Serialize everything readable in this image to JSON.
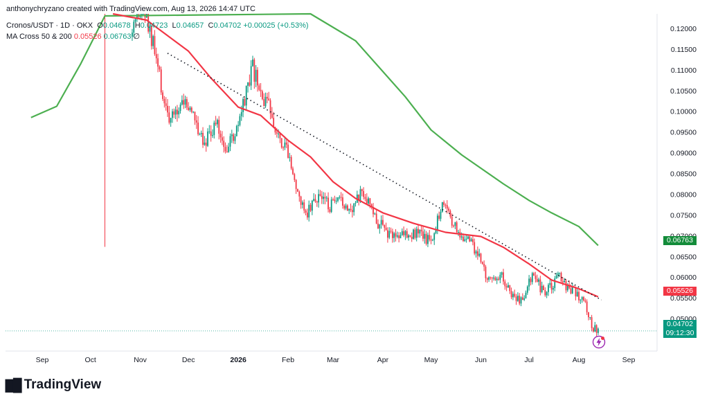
{
  "header": {
    "credit": "anthonychryzano created with TradingView.com, Aug 13, 2026 14:47 UTC",
    "symbol": "Cronos/USDT · 1D · OKX",
    "o_label": "O",
    "o": "0.04678",
    "h_label": "H",
    "h": "0.04723",
    "l_label": "L",
    "l": "0.04657",
    "c_label": "C",
    "c": "0.04702",
    "change": "+0.00025 (+0.53%)",
    "ma_label": "MA Cross 50 & 200",
    "ma50": "0.05526",
    "ma200": "0.06763",
    "ma_extra": "∅"
  },
  "price_labels": {
    "ma200": "0.06763",
    "ma50": "0.05526",
    "last": "0.04702",
    "countdown": "09:12:30"
  },
  "colors": {
    "up": "#089981",
    "down": "#f23645",
    "ma50": "#f23645",
    "ma200": "#4caf50",
    "trendline": "#131722",
    "last_bg": "#089981",
    "ma50_bg": "#f23645",
    "ma200_bg": "#138c3a"
  },
  "logo": {
    "text": "TradingView",
    "icon": "tradingview-logo-icon"
  },
  "chart_data": {
    "type": "candlestick",
    "symbol": "Cronos/USDT",
    "timeframe": "1D",
    "exchange": "OKX",
    "ylim": [
      0.0425,
      0.1235
    ],
    "y_ticks": [
      "0.12000",
      "0.11500",
      "0.11000",
      "0.10500",
      "0.10000",
      "0.09500",
      "0.09000",
      "0.08500",
      "0.08000",
      "0.07500",
      "0.07000",
      "0.06500",
      "0.06000",
      "0.05500",
      "0.05000"
    ],
    "x_ticks": [
      {
        "label": "Sep",
        "date": "2025-09-01"
      },
      {
        "label": "Oct",
        "date": "2025-10-01"
      },
      {
        "label": "Nov",
        "date": "2025-11-01"
      },
      {
        "label": "Dec",
        "date": "2025-12-01"
      },
      {
        "label": "2026",
        "date": "2026-01-01",
        "bold": true
      },
      {
        "label": "Feb",
        "date": "2026-02-01"
      },
      {
        "label": "Mar",
        "date": "2026-03-01"
      },
      {
        "label": "Apr",
        "date": "2026-04-01"
      },
      {
        "label": "May",
        "date": "2026-05-01"
      },
      {
        "label": "Jun",
        "date": "2026-06-01"
      },
      {
        "label": "Jul",
        "date": "2026-07-01"
      },
      {
        "label": "Aug",
        "date": "2026-08-01"
      },
      {
        "label": "Sep",
        "date": "2026-09-01"
      }
    ],
    "price_path": [
      [
        "2025-10-27",
        0.118
      ],
      [
        "2025-11-03",
        0.125
      ],
      [
        "2025-11-10",
        0.114
      ],
      [
        "2025-11-15",
        0.104
      ],
      [
        "2025-11-20",
        0.097
      ],
      [
        "2025-11-27",
        0.103
      ],
      [
        "2025-12-04",
        0.099
      ],
      [
        "2025-12-11",
        0.093
      ],
      [
        "2025-12-18",
        0.097
      ],
      [
        "2025-12-25",
        0.091
      ],
      [
        "2026-01-01",
        0.096
      ],
      [
        "2026-01-06",
        0.104
      ],
      [
        "2026-01-10",
        0.11
      ],
      [
        "2026-01-15",
        0.104
      ],
      [
        "2026-01-21",
        0.1
      ],
      [
        "2026-01-27",
        0.094
      ],
      [
        "2026-02-02",
        0.09
      ],
      [
        "2026-02-07",
        0.079
      ],
      [
        "2026-02-13",
        0.076
      ],
      [
        "2026-02-20",
        0.08
      ],
      [
        "2026-02-27",
        0.077
      ],
      [
        "2026-03-06",
        0.078
      ],
      [
        "2026-03-13",
        0.077
      ],
      [
        "2026-03-20",
        0.081
      ],
      [
        "2026-03-27",
        0.074
      ],
      [
        "2026-04-03",
        0.071
      ],
      [
        "2026-04-10",
        0.07
      ],
      [
        "2026-04-17",
        0.071
      ],
      [
        "2026-04-24",
        0.07
      ],
      [
        "2026-05-01",
        0.069
      ],
      [
        "2026-05-08",
        0.078
      ],
      [
        "2026-05-13",
        0.075
      ],
      [
        "2026-05-18",
        0.07
      ],
      [
        "2026-05-25",
        0.069
      ],
      [
        "2026-06-01",
        0.064
      ],
      [
        "2026-06-06",
        0.059
      ],
      [
        "2026-06-13",
        0.061
      ],
      [
        "2026-06-20",
        0.056
      ],
      [
        "2026-06-27",
        0.054
      ],
      [
        "2026-07-03",
        0.061
      ],
      [
        "2026-07-10",
        0.056
      ],
      [
        "2026-07-16",
        0.058
      ],
      [
        "2026-07-19",
        0.061
      ],
      [
        "2026-07-23",
        0.058
      ],
      [
        "2026-07-30",
        0.056
      ],
      [
        "2026-08-05",
        0.054
      ],
      [
        "2026-08-09",
        0.048
      ],
      [
        "2026-08-13",
        0.047
      ]
    ],
    "ma50": [
      [
        "2025-10-15",
        0.125
      ],
      [
        "2025-11-05",
        0.122
      ],
      [
        "2025-12-01",
        0.1145
      ],
      [
        "2025-12-15",
        0.108
      ],
      [
        "2026-01-01",
        0.101
      ],
      [
        "2026-01-15",
        0.099
      ],
      [
        "2026-02-01",
        0.093
      ],
      [
        "2026-02-15",
        0.089
      ],
      [
        "2026-03-01",
        0.083
      ],
      [
        "2026-03-15",
        0.079
      ],
      [
        "2026-04-01",
        0.0755
      ],
      [
        "2026-04-20",
        0.073
      ],
      [
        "2026-05-10",
        0.0708
      ],
      [
        "2026-06-01",
        0.0698
      ],
      [
        "2026-06-15",
        0.0672
      ],
      [
        "2026-07-01",
        0.0632
      ],
      [
        "2026-07-15",
        0.0593
      ],
      [
        "2026-08-01",
        0.0572
      ],
      [
        "2026-08-13",
        0.05526
      ]
    ],
    "ma200": [
      [
        "2025-08-25",
        0.0985
      ],
      [
        "2025-09-10",
        0.1012
      ],
      [
        "2025-09-25",
        0.1115
      ],
      [
        "2025-10-10",
        0.123
      ],
      [
        "2026-02-15",
        0.1235
      ],
      [
        "2026-03-15",
        0.117
      ],
      [
        "2026-04-15",
        0.1035
      ],
      [
        "2026-05-01",
        0.0955
      ],
      [
        "2026-05-20",
        0.0895
      ],
      [
        "2026-06-15",
        0.0825
      ],
      [
        "2026-07-01",
        0.0785
      ],
      [
        "2026-07-15",
        0.0755
      ],
      [
        "2026-08-01",
        0.0722
      ],
      [
        "2026-08-13",
        0.06763
      ]
    ],
    "trendline": {
      "start": [
        "2025-11-18",
        0.114
      ],
      "end": [
        "2026-08-15",
        0.0545
      ]
    },
    "spike_wick": {
      "date": "2025-10-10",
      "high": 0.1235,
      "low": 0.0673
    },
    "last_price": 0.04702
  }
}
